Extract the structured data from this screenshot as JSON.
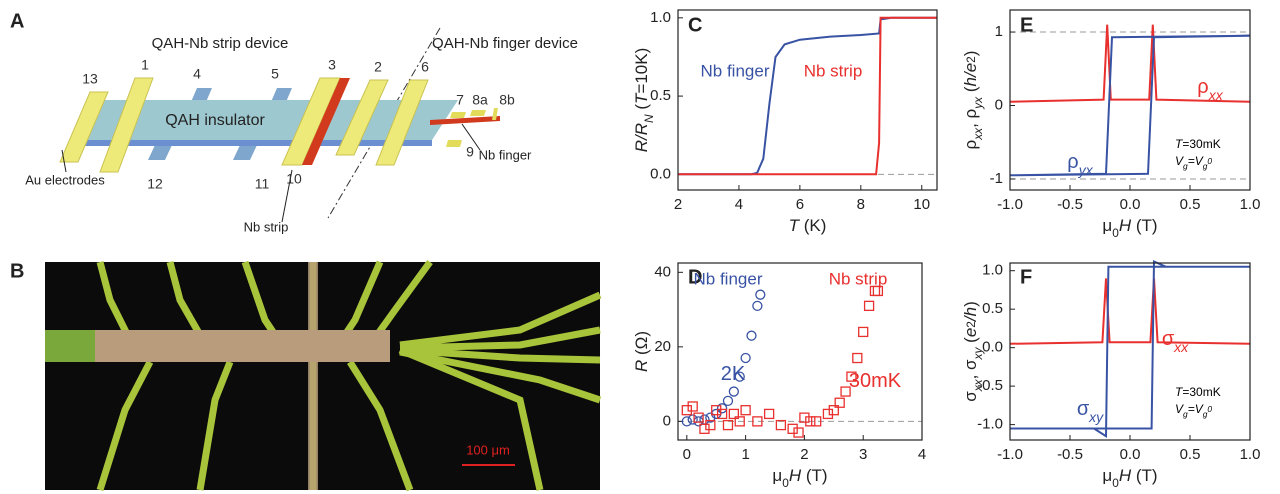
{
  "panels": [
    "A",
    "B",
    "C",
    "D",
    "E",
    "F"
  ],
  "diagram": {
    "strip_title": "QAH-Nb strip device",
    "finger_title": "QAH-Nb finger device",
    "slab_label": "QAH insulator",
    "electrodes": [
      "13",
      "1",
      "4",
      "5",
      "3",
      "2",
      "6",
      "7",
      "8a",
      "8b",
      "12",
      "11",
      "10",
      "9"
    ],
    "callouts": [
      "Au electrodes",
      "Nb strip",
      "Nb finger"
    ]
  },
  "micrograph": {
    "scale_bar": "100 μm"
  },
  "chart_data": [
    {
      "type": "line",
      "xlabel": [
        {
          "text": "T",
          "italic": true
        },
        {
          "text": " (K)"
        }
      ],
      "ylabel": [
        {
          "text": "R/R",
          "italic": true
        },
        {
          "text": "N",
          "italic": true,
          "shift": "sub"
        },
        {
          "text": " ("
        },
        {
          "text": "T",
          "italic": true
        },
        {
          "text": "=10K)"
        }
      ],
      "xlim": [
        2,
        10.5
      ],
      "xticks": [
        2,
        4,
        6,
        8,
        10
      ],
      "ylim": [
        -0.1,
        1.05
      ],
      "yticks": [
        {
          "value": 0,
          "label": "0.0"
        },
        {
          "value": 0.5,
          "label": "0.5"
        },
        {
          "value": 1,
          "label": "1.0"
        }
      ],
      "reference_lines": [
        0
      ],
      "series": [
        {
          "name": "Nb finger",
          "color": "#3953a4",
          "x": [
            2,
            4.4,
            4.6,
            4.8,
            5.0,
            5.2,
            5.5,
            6,
            7,
            8,
            8.6,
            8.65,
            9,
            10.5
          ],
          "values": [
            0,
            0,
            0.01,
            0.1,
            0.45,
            0.75,
            0.83,
            0.86,
            0.88,
            0.89,
            0.9,
            0.99,
            1.0,
            1.0
          ]
        },
        {
          "name": "Nb strip",
          "color": "#e8302e",
          "x": [
            2,
            8.5,
            8.6,
            8.65,
            10.5
          ],
          "values": [
            0,
            0,
            0.2,
            1.0,
            1.0
          ]
        }
      ]
    },
    {
      "type": "scatter",
      "xlabel": [
        {
          "text": "μ"
        },
        {
          "text": "0",
          "shift": "sub"
        },
        {
          "text": "H",
          "italic": true
        },
        {
          "text": " (T)"
        }
      ],
      "ylabel": [
        {
          "text": "R",
          "italic": true
        },
        {
          "text": " (Ω)"
        }
      ],
      "xlim": [
        -0.15,
        4
      ],
      "xticks": [
        0,
        1,
        2,
        3,
        4
      ],
      "ylim": [
        -5,
        42.5
      ],
      "yticks": [
        0,
        20,
        40
      ],
      "reference_lines": [
        0
      ],
      "annotations": [
        {
          "text": [
            {
              "text": "2K"
            }
          ],
          "color": "#3953a4"
        },
        {
          "text": [
            {
              "text": "30mK"
            }
          ],
          "color": "#e8302e"
        }
      ],
      "series": [
        {
          "name": "Nb finger",
          "color": "#3953a4",
          "marker": "circle",
          "x": [
            0,
            0.1,
            0.2,
            0.3,
            0.4,
            0.5,
            0.6,
            0.7,
            0.8,
            0.9,
            1.0,
            1.1,
            1.2,
            1.25
          ],
          "values": [
            0,
            0.5,
            0,
            0.5,
            1,
            2,
            3.5,
            5.5,
            8,
            12,
            17,
            23,
            31,
            34
          ]
        },
        {
          "name": "Nb strip",
          "color": "#e8302e",
          "marker": "square",
          "x": [
            0,
            0.1,
            0.2,
            0.3,
            0.4,
            0.5,
            0.6,
            0.7,
            0.8,
            0.9,
            1.0,
            1.2,
            1.4,
            1.6,
            1.8,
            1.9,
            2.0,
            2.1,
            2.2,
            2.4,
            2.5,
            2.6,
            2.7,
            2.8,
            2.9,
            3.0,
            3.1,
            3.2,
            3.25
          ],
          "values": [
            3,
            4,
            1,
            -2,
            -1,
            3,
            2,
            -1,
            2,
            0,
            3,
            0,
            2,
            -1,
            -2,
            -3,
            1,
            0,
            0,
            2,
            3,
            5,
            8,
            12,
            17,
            24,
            31,
            35,
            35
          ]
        }
      ]
    },
    {
      "type": "line",
      "xlabel": [
        {
          "text": "μ"
        },
        {
          "text": "0",
          "shift": "sub"
        },
        {
          "text": "H",
          "italic": true
        },
        {
          "text": " (T)"
        }
      ],
      "ylabel": [
        {
          "text": "ρ"
        },
        {
          "text": "xx",
          "italic": true,
          "shift": "sub"
        },
        {
          "text": ", ρ"
        },
        {
          "text": "yx",
          "italic": true,
          "shift": "sub"
        },
        {
          "text": " ("
        },
        {
          "text": "h/e",
          "italic": true
        },
        {
          "text": "2",
          "shift": "sup"
        },
        {
          "text": ")"
        }
      ],
      "xlim": [
        -1,
        1
      ],
      "xticks": [
        {
          "value": -1,
          "label": "-1.0"
        },
        {
          "value": -0.5,
          "label": "-0.5"
        },
        {
          "value": 0,
          "label": "0.0"
        },
        {
          "value": 0.5,
          "label": "0.5"
        },
        {
          "value": 1,
          "label": "1.0"
        }
      ],
      "ylim": [
        -1.15,
        1.3
      ],
      "yticks": [
        1,
        0,
        -1
      ],
      "reference_lines": [
        1,
        -1
      ],
      "annotations": [
        {
          "text": [
            {
              "text": "ρ"
            },
            {
              "text": "xx",
              "italic": true,
              "shift": "sub"
            }
          ],
          "color": "#e8302e"
        },
        {
          "text": [
            {
              "text": "ρ"
            },
            {
              "text": "yx",
              "italic": true,
              "shift": "sub"
            }
          ],
          "color": "#3953a4"
        },
        {
          "text": [
            {
              "text": "T",
              "italic": true
            },
            {
              "text": "=30mK"
            }
          ],
          "color": "#000000"
        },
        {
          "text": [
            {
              "text": "V",
              "italic": true
            },
            {
              "text": "g",
              "italic": true,
              "shift": "sub"
            },
            {
              "text": "=V",
              "italic": true
            },
            {
              "text": "g",
              "italic": true,
              "shift": "sub"
            },
            {
              "text": "0",
              "italic": true,
              "shift": "sup"
            }
          ],
          "color": "#000000"
        }
      ],
      "series": [
        {
          "name": "ρxx",
          "color": "#e8302e",
          "x": [
            -1,
            -0.22,
            -0.19,
            -0.16,
            0.16,
            0.19,
            0.22,
            1
          ],
          "values": [
            0.05,
            0.08,
            1.1,
            0.08,
            0.08,
            1.1,
            0.08,
            0.05
          ]
        },
        {
          "name": "ρyx",
          "color": "#3953a4",
          "x": [
            -1,
            0.15,
            0.2,
            1,
            1,
            -0.15,
            -0.2,
            -1
          ],
          "values": [
            -0.95,
            -0.93,
            0.93,
            0.95,
            0.95,
            0.93,
            -0.93,
            -0.95
          ]
        }
      ]
    },
    {
      "type": "line",
      "xlabel": [
        {
          "text": "μ"
        },
        {
          "text": "0",
          "shift": "sub"
        },
        {
          "text": "H",
          "italic": true
        },
        {
          "text": " (T)"
        }
      ],
      "ylabel": [
        {
          "text": "σ"
        },
        {
          "text": "xx",
          "italic": true,
          "shift": "sub"
        },
        {
          "text": ", σ"
        },
        {
          "text": "xy",
          "italic": true,
          "shift": "sub"
        },
        {
          "text": " ("
        },
        {
          "text": "e",
          "italic": true
        },
        {
          "text": "2",
          "shift": "sup"
        },
        {
          "text": "/h",
          "italic": true
        },
        {
          "text": ")"
        }
      ],
      "xlim": [
        -1,
        1
      ],
      "xticks": [
        {
          "value": -1,
          "label": "-1.0"
        },
        {
          "value": -0.5,
          "label": "-0.5"
        },
        {
          "value": 0,
          "label": "0.0"
        },
        {
          "value": 0.5,
          "label": "0.5"
        },
        {
          "value": 1,
          "label": "1.0"
        }
      ],
      "ylim": [
        -1.2,
        1.1
      ],
      "yticks": [
        {
          "value": 1,
          "label": "1.0"
        },
        {
          "value": 0.5,
          "label": "0.5"
        },
        {
          "value": 0,
          "label": "0.0"
        },
        {
          "value": -0.5,
          "label": "-0.5"
        },
        {
          "value": -1,
          "label": "-1.0"
        }
      ],
      "annotations": [
        {
          "text": [
            {
              "text": "σ"
            },
            {
              "text": "xx",
              "italic": true,
              "shift": "sub"
            }
          ],
          "color": "#e8302e"
        },
        {
          "text": [
            {
              "text": "σ"
            },
            {
              "text": "xy",
              "italic": true,
              "shift": "sub"
            }
          ],
          "color": "#3953a4"
        },
        {
          "text": [
            {
              "text": "T",
              "italic": true
            },
            {
              "text": "=30mK"
            }
          ],
          "color": "#000000"
        },
        {
          "text": [
            {
              "text": "V",
              "italic": true
            },
            {
              "text": "g",
              "italic": true,
              "shift": "sub"
            },
            {
              "text": "=V",
              "italic": true
            },
            {
              "text": "g",
              "italic": true,
              "shift": "sub"
            },
            {
              "text": "0",
              "italic": true,
              "shift": "sup"
            }
          ],
          "color": "#000000"
        }
      ],
      "series": [
        {
          "name": "σxx",
          "color": "#e8302e",
          "x": [
            -1,
            -0.23,
            -0.2,
            -0.17,
            0.17,
            0.2,
            0.23,
            1
          ],
          "values": [
            0.05,
            0.07,
            0.9,
            0.07,
            0.07,
            0.9,
            0.07,
            0.05
          ]
        },
        {
          "name": "σxy",
          "color": "#3953a4",
          "x": [
            -1,
            0.18,
            0.2,
            0.3,
            1,
            1,
            -0.18,
            -0.2,
            -0.3,
            -1
          ],
          "values": [
            -1.05,
            -1.05,
            1.12,
            1.05,
            1.05,
            1.05,
            1.05,
            -1.15,
            -1.05,
            -1.05
          ]
        }
      ]
    }
  ]
}
